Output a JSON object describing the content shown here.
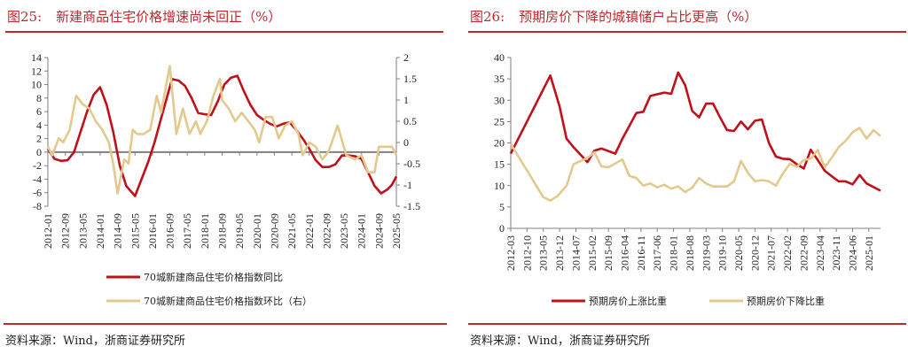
{
  "colors": {
    "red": "#c0111a",
    "beige": "#e3c98e",
    "axis": "#7f7f7f",
    "accent": "#c0282d"
  },
  "footer": {
    "source": "资料来源：Wind，浙商证券研究所"
  },
  "chart_data": [
    {
      "type": "line",
      "figure_no": "图25:",
      "title": "新建商品住宅价格增速尚未回正（%）",
      "x_ticks": [
        "2012-01",
        "2012-09",
        "2013-05",
        "2014-01",
        "2014-09",
        "2015-05",
        "2016-01",
        "2016-09",
        "2017-05",
        "2018-01",
        "2018-09",
        "2019-05",
        "2020-01",
        "2020-09",
        "2021-05",
        "2022-01",
        "2022-09",
        "2023-05",
        "2024-01",
        "2024-09",
        "2025-05"
      ],
      "x_range": [
        "2012-01",
        "2025-05"
      ],
      "y_left": {
        "range": [
          -8,
          14
        ],
        "ticks": [
          -8,
          -6,
          -4,
          -2,
          0,
          2,
          4,
          6,
          8,
          10,
          12,
          14
        ]
      },
      "y_right": {
        "range": [
          -1.5,
          2
        ],
        "ticks": [
          -1.5,
          -1,
          -0.5,
          0,
          0.5,
          1,
          1.5,
          2
        ],
        "tick_labels": [
          "-1.5",
          "-1",
          "-0.5",
          "0",
          "0.5",
          "1",
          "1.5",
          "2"
        ]
      },
      "legend_placement": "bottom",
      "series": [
        {
          "name": "70城新建商品住宅价格指数同比",
          "axis": "left",
          "color": "#c0111a",
          "points": [
            [
              "2012-01",
              0.5
            ],
            [
              "2012-04",
              -1
            ],
            [
              "2012-07",
              -1.3
            ],
            [
              "2012-10",
              -1.2
            ],
            [
              "2013-01",
              0
            ],
            [
              "2013-04",
              3
            ],
            [
              "2013-07",
              6
            ],
            [
              "2013-10",
              8.5
            ],
            [
              "2014-01",
              9.6
            ],
            [
              "2014-04",
              7
            ],
            [
              "2014-07",
              3
            ],
            [
              "2014-10",
              -2
            ],
            [
              "2015-01",
              -5
            ],
            [
              "2015-05",
              -6.5
            ],
            [
              "2015-08",
              -4
            ],
            [
              "2015-11",
              -1.5
            ],
            [
              "2016-02",
              1.5
            ],
            [
              "2016-05",
              5
            ],
            [
              "2016-08",
              8.5
            ],
            [
              "2016-10",
              10.8
            ],
            [
              "2017-01",
              10.6
            ],
            [
              "2017-04",
              9.8
            ],
            [
              "2017-07",
              8
            ],
            [
              "2017-10",
              5.8
            ],
            [
              "2018-01",
              5.6
            ],
            [
              "2018-04",
              5.5
            ],
            [
              "2018-07",
              7.5
            ],
            [
              "2018-10",
              10
            ],
            [
              "2019-01",
              11
            ],
            [
              "2019-04",
              11.3
            ],
            [
              "2019-07",
              9
            ],
            [
              "2019-10",
              7
            ],
            [
              "2020-01",
              5.5
            ],
            [
              "2020-04",
              4.8
            ],
            [
              "2020-07",
              4.2
            ],
            [
              "2020-10",
              3.8
            ],
            [
              "2021-01",
              4.2
            ],
            [
              "2021-04",
              4.4
            ],
            [
              "2021-07",
              3.3
            ],
            [
              "2021-10",
              2
            ],
            [
              "2022-01",
              0.5
            ],
            [
              "2022-04",
              -1.2
            ],
            [
              "2022-07",
              -2.2
            ],
            [
              "2022-10",
              -2.2
            ],
            [
              "2023-01",
              -1.8
            ],
            [
              "2023-04",
              -0.5
            ],
            [
              "2023-07",
              -0.5
            ],
            [
              "2023-10",
              -0.6
            ],
            [
              "2024-01",
              -1.0
            ],
            [
              "2024-04",
              -3
            ],
            [
              "2024-07",
              -5
            ],
            [
              "2024-10",
              -6.1
            ],
            [
              "2025-01",
              -5.5
            ],
            [
              "2025-03",
              -4.8
            ],
            [
              "2025-05",
              -3.6
            ]
          ]
        },
        {
          "name": "70城新建商品住宅价格指数环比（右）",
          "axis": "right",
          "color": "#e3c98e",
          "points": [
            [
              "2012-01",
              -0.1
            ],
            [
              "2012-03",
              -0.3
            ],
            [
              "2012-06",
              0.1
            ],
            [
              "2012-08",
              0
            ],
            [
              "2012-11",
              0.3
            ],
            [
              "2013-02",
              1.1
            ],
            [
              "2013-05",
              0.9
            ],
            [
              "2013-08",
              0.8
            ],
            [
              "2013-11",
              0.5
            ],
            [
              "2014-02",
              0.3
            ],
            [
              "2014-05",
              0
            ],
            [
              "2014-07",
              -0.5
            ],
            [
              "2014-09",
              -1.2
            ],
            [
              "2014-12",
              -0.4
            ],
            [
              "2015-02",
              -0.5
            ],
            [
              "2015-04",
              0.3
            ],
            [
              "2015-06",
              0.2
            ],
            [
              "2015-09",
              0.2
            ],
            [
              "2015-12",
              0.3
            ],
            [
              "2016-03",
              1.1
            ],
            [
              "2016-05",
              0.7
            ],
            [
              "2016-09",
              1.8
            ],
            [
              "2016-12",
              0.2
            ],
            [
              "2017-03",
              0.8
            ],
            [
              "2017-06",
              0.2
            ],
            [
              "2017-09",
              0.5
            ],
            [
              "2017-11",
              0.2
            ],
            [
              "2018-02",
              0.5
            ],
            [
              "2018-05",
              1.1
            ],
            [
              "2018-08",
              1.5
            ],
            [
              "2018-09",
              1.0
            ],
            [
              "2018-12",
              0.8
            ],
            [
              "2019-03",
              0.5
            ],
            [
              "2019-06",
              0.7
            ],
            [
              "2019-09",
              0.5
            ],
            [
              "2019-12",
              0.3
            ],
            [
              "2020-02",
              0
            ],
            [
              "2020-05",
              0.6
            ],
            [
              "2020-08",
              0.6
            ],
            [
              "2020-11",
              0.1
            ],
            [
              "2021-02",
              0.4
            ],
            [
              "2021-05",
              0.5
            ],
            [
              "2021-08",
              0.2
            ],
            [
              "2021-10",
              -0.3
            ],
            [
              "2022-01",
              0
            ],
            [
              "2022-04",
              -0.1
            ],
            [
              "2022-07",
              -0.4
            ],
            [
              "2022-10",
              -0.2
            ],
            [
              "2023-02",
              0.4
            ],
            [
              "2023-06",
              -0.3
            ],
            [
              "2023-10",
              -0.4
            ],
            [
              "2024-01",
              -0.3
            ],
            [
              "2024-04",
              -0.7
            ],
            [
              "2024-07",
              -0.7
            ],
            [
              "2024-09",
              -0.1
            ],
            [
              "2024-12",
              -0.1
            ],
            [
              "2025-03",
              -0.1
            ],
            [
              "2025-05",
              -0.3
            ]
          ]
        }
      ]
    },
    {
      "type": "line",
      "figure_no": "图26:",
      "title": "预期房价下降的城镇储户占比更高（%）",
      "x_ticks": [
        "2012-03",
        "2012-10",
        "2013-05",
        "2013-12",
        "2014-07",
        "2015-02",
        "2015-09",
        "2016-04",
        "2016-11",
        "2017-06",
        "2018-01",
        "2018-08",
        "2019-03",
        "2019-10",
        "2020-05",
        "2020-12",
        "2021-07",
        "2022-02",
        "2022-09",
        "2023-04",
        "2023-11",
        "2024-06",
        "2025-01"
      ],
      "x_range": [
        "2012-03",
        "2025-06"
      ],
      "y_left": {
        "range": [
          0,
          40
        ],
        "ticks": [
          0,
          5,
          10,
          15,
          20,
          25,
          30,
          35,
          40
        ]
      },
      "legend_placement": "bottom",
      "series": [
        {
          "name": "预期房价上涨比重",
          "axis": "left",
          "color": "#c0111a",
          "points": [
            [
              "2012-03",
              17.5
            ],
            [
              "2013-08",
              35.8
            ],
            [
              "2013-12",
              28.5
            ],
            [
              "2014-03",
              21
            ],
            [
              "2014-06",
              19
            ],
            [
              "2014-12",
              15.5
            ],
            [
              "2015-03",
              18.2
            ],
            [
              "2015-06",
              18.7
            ],
            [
              "2015-12",
              17.5
            ],
            [
              "2016-03",
              21
            ],
            [
              "2016-09",
              27
            ],
            [
              "2016-12",
              27.3
            ],
            [
              "2017-03",
              31
            ],
            [
              "2017-09",
              31.8
            ],
            [
              "2017-12",
              31.5
            ],
            [
              "2018-03",
              36.5
            ],
            [
              "2018-06",
              33.5
            ],
            [
              "2018-09",
              27.5
            ],
            [
              "2018-12",
              26
            ],
            [
              "2019-03",
              29.2
            ],
            [
              "2019-06",
              29.2
            ],
            [
              "2019-09",
              26
            ],
            [
              "2019-12",
              23
            ],
            [
              "2020-03",
              22.8
            ],
            [
              "2020-06",
              25
            ],
            [
              "2020-09",
              23.2
            ],
            [
              "2020-12",
              25.2
            ],
            [
              "2021-03",
              25.5
            ],
            [
              "2021-06",
              20
            ],
            [
              "2021-09",
              16.8
            ],
            [
              "2021-12",
              16.3
            ],
            [
              "2022-03",
              16.2
            ],
            [
              "2022-06",
              15
            ],
            [
              "2022-09",
              14
            ],
            [
              "2022-12",
              18.4
            ],
            [
              "2023-03",
              16
            ],
            [
              "2023-06",
              13.5
            ],
            [
              "2023-09",
              12.2
            ],
            [
              "2023-12",
              11
            ],
            [
              "2024-03",
              11
            ],
            [
              "2024-06",
              10.3
            ],
            [
              "2024-09",
              12.5
            ],
            [
              "2024-12",
              10.5
            ],
            [
              "2025-06",
              8.8
            ]
          ]
        },
        {
          "name": "预期房价下降比重",
          "axis": "left",
          "color": "#e3c98e",
          "points": [
            [
              "2012-03",
              19.8
            ],
            [
              "2013-05",
              7.3
            ],
            [
              "2013-08",
              6.5
            ],
            [
              "2013-11",
              7.5
            ],
            [
              "2014-03",
              10
            ],
            [
              "2014-06",
              15
            ],
            [
              "2014-12",
              16.5
            ],
            [
              "2015-03",
              17.8
            ],
            [
              "2015-06",
              14.5
            ],
            [
              "2015-09",
              14.3
            ],
            [
              "2016-03",
              16.1
            ],
            [
              "2016-06",
              12.3
            ],
            [
              "2016-09",
              11.8
            ],
            [
              "2016-12",
              10
            ],
            [
              "2017-03",
              10.5
            ],
            [
              "2017-06",
              9.6
            ],
            [
              "2017-09",
              10.2
            ],
            [
              "2017-12",
              9.3
            ],
            [
              "2018-03",
              9.8
            ],
            [
              "2018-06",
              8.5
            ],
            [
              "2018-09",
              9.5
            ],
            [
              "2018-12",
              11.8
            ],
            [
              "2019-03",
              10.5
            ],
            [
              "2019-06",
              9.8
            ],
            [
              "2019-12",
              9.8
            ],
            [
              "2020-03",
              11
            ],
            [
              "2020-06",
              15.8
            ],
            [
              "2020-09",
              13
            ],
            [
              "2020-12",
              11
            ],
            [
              "2021-03",
              11.3
            ],
            [
              "2021-06",
              11
            ],
            [
              "2021-09",
              10
            ],
            [
              "2021-12",
              12.8
            ],
            [
              "2022-03",
              15.1
            ],
            [
              "2022-06",
              14.4
            ],
            [
              "2022-09",
              16
            ],
            [
              "2022-12",
              16.3
            ],
            [
              "2023-03",
              18.3
            ],
            [
              "2023-06",
              14.3
            ],
            [
              "2023-09",
              16.5
            ],
            [
              "2023-12",
              19
            ],
            [
              "2024-03",
              20.5
            ],
            [
              "2024-06",
              22.5
            ],
            [
              "2024-09",
              23.5
            ],
            [
              "2024-12",
              21
            ],
            [
              "2025-03",
              23
            ],
            [
              "2025-06",
              21.6
            ]
          ]
        }
      ]
    }
  ]
}
